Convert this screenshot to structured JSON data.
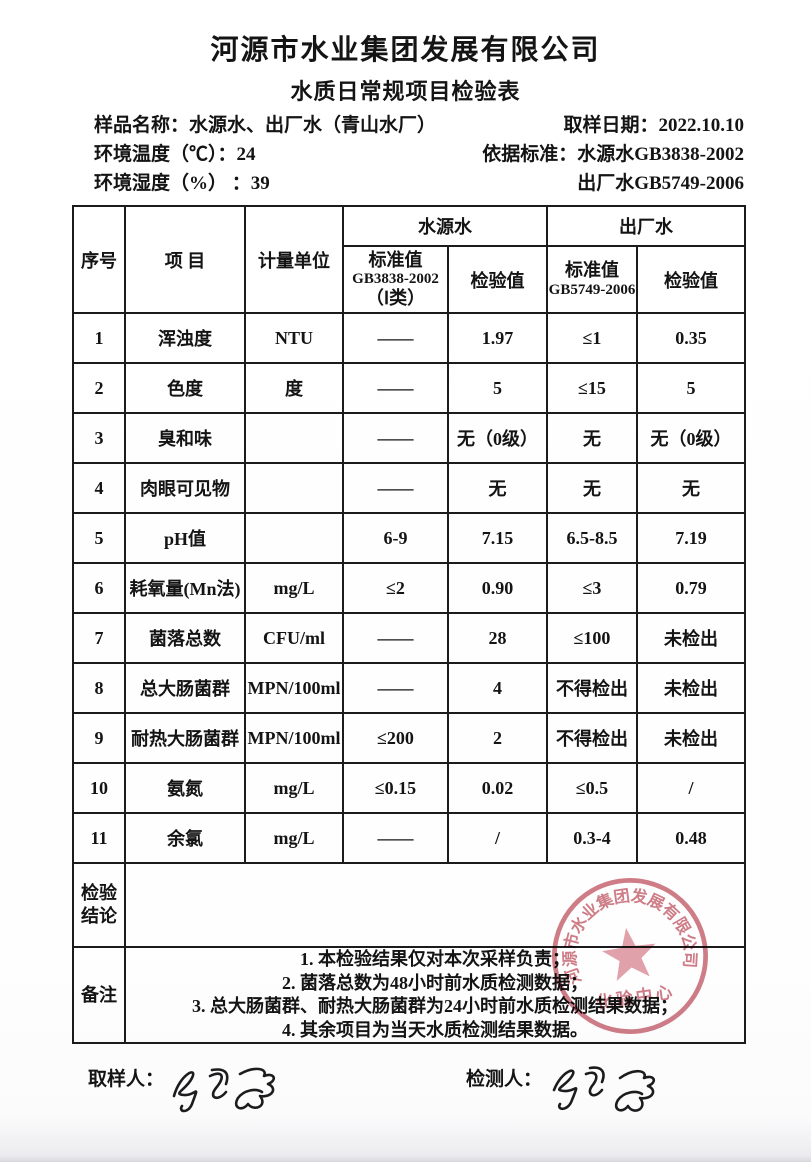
{
  "header": {
    "company": "河源市水业集团发展有限公司",
    "form_title": "水质日常规项目检验表",
    "sample_label": "样品名称：",
    "sample_value": "水源水、出厂水（青山水厂）",
    "date_label": "取样日期：",
    "date_value": "2022.10.10",
    "env_temp_label": "环境温度（℃）：",
    "env_temp_value": "24",
    "env_humidity_label": "环境湿度（%） ：",
    "env_humidity_value": "39",
    "standard_label": "依据标准：",
    "standard_source": "水源水GB3838-2002",
    "standard_factory": "出厂水GB5749-2006"
  },
  "table": {
    "head": {
      "col_no": "序号",
      "col_item": "项  目",
      "col_unit": "计量单位",
      "group_source": "水源水",
      "group_factory": "出厂水",
      "src_std_l1": "标准值",
      "src_std_l2": "GB3838-2002",
      "src_std_l3": "（Ⅰ类）",
      "src_val": "检验值",
      "out_std_l1": "标准值",
      "out_std_l2": "GB5749-2006",
      "out_val": "检验值"
    },
    "rows": [
      {
        "no": "1",
        "item": "浑浊度",
        "unit": "NTU",
        "src_std": "——",
        "src_val": "1.97",
        "out_std": "≤1",
        "out_val": "0.35"
      },
      {
        "no": "2",
        "item": "色度",
        "unit": "度",
        "src_std": "——",
        "src_val": "5",
        "out_std": "≤15",
        "out_val": "5"
      },
      {
        "no": "3",
        "item": "臭和味",
        "unit": "",
        "src_std": "——",
        "src_val": "无（0级）",
        "out_std": "无",
        "out_val": "无（0级）"
      },
      {
        "no": "4",
        "item": "肉眼可见物",
        "unit": "",
        "src_std": "——",
        "src_val": "无",
        "out_std": "无",
        "out_val": "无"
      },
      {
        "no": "5",
        "item": "pH值",
        "unit": "",
        "src_std": "6-9",
        "src_val": "7.15",
        "out_std": "6.5-8.5",
        "out_val": "7.19"
      },
      {
        "no": "6",
        "item": "耗氧量(Mn法)",
        "unit": "mg/L",
        "src_std": "≤2",
        "src_val": "0.90",
        "out_std": "≤3",
        "out_val": "0.79"
      },
      {
        "no": "7",
        "item": "菌落总数",
        "unit": "CFU/ml",
        "src_std": "——",
        "src_val": "28",
        "out_std": "≤100",
        "out_val": "未检出"
      },
      {
        "no": "8",
        "item": "总大肠菌群",
        "unit": "MPN/100ml",
        "src_std": "——",
        "src_val": "4",
        "out_std": "不得检出",
        "out_val": "未检出"
      },
      {
        "no": "9",
        "item": "耐热大肠菌群",
        "unit": "MPN/100ml",
        "src_std": "≤200",
        "src_val": "2",
        "out_std": "不得检出",
        "out_val": "未检出"
      },
      {
        "no": "10",
        "item": "氨氮",
        "unit": "mg/L",
        "src_std": "≤0.15",
        "src_val": "0.02",
        "out_std": "≤0.5",
        "out_val": "/"
      },
      {
        "no": "11",
        "item": "余氯",
        "unit": "mg/L",
        "src_std": "——",
        "src_val": "/",
        "out_std": "0.3-4",
        "out_val": "0.48"
      }
    ]
  },
  "conclusion": {
    "label": "检验结论",
    "value": ""
  },
  "notes": {
    "label": "备注",
    "items": [
      "1. 本检验结果仅对本次采样负责；",
      "2. 菌落总数为48小时前水质检测数据；",
      "3. 总大肠菌群、耐热大肠菌群为24小时前水质检测结果数据；",
      "4. 其余项目为当天水质检测结果数据。"
    ]
  },
  "signatures": {
    "sampler_label": "取样人：",
    "tester_label": "检测人："
  },
  "seal": {
    "arc_text": "河源市水业集团发展有限公司",
    "center_text": "化验中心",
    "color": "#c4606e",
    "star_color": "#db8d99"
  }
}
